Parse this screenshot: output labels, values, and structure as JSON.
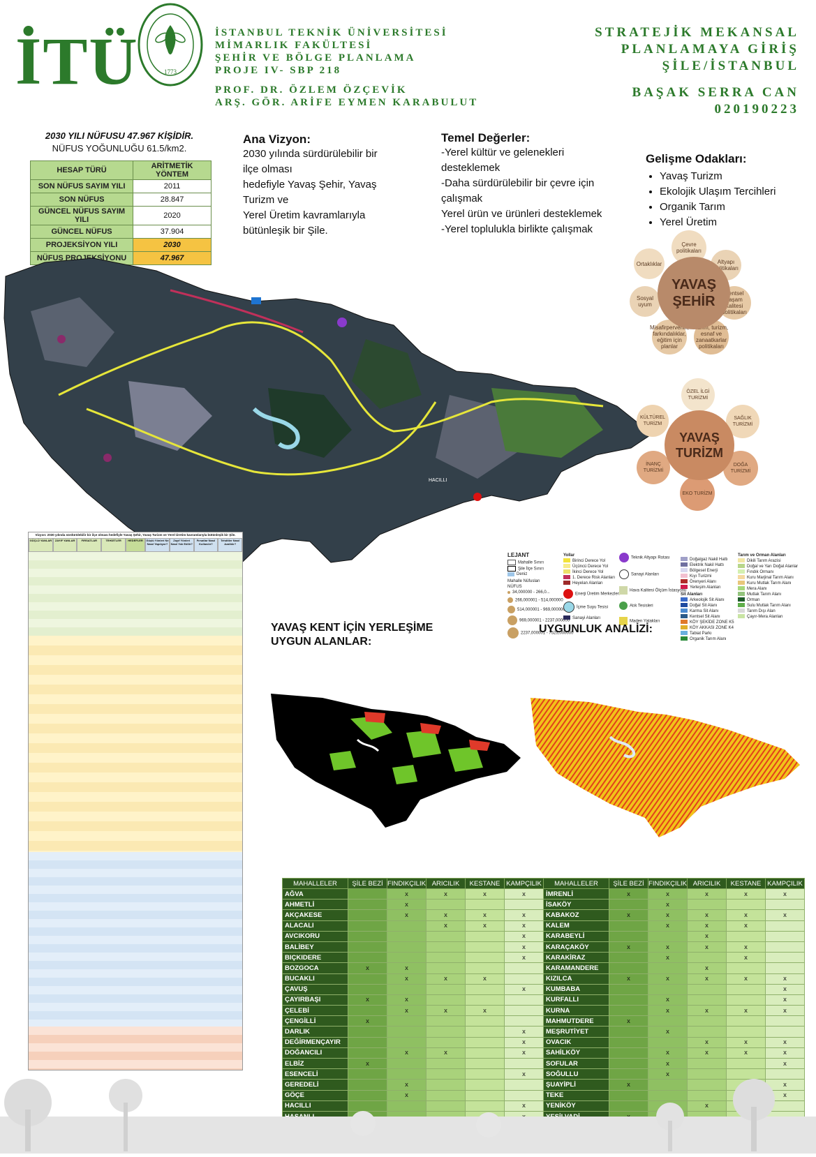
{
  "header": {
    "logo": "İTÜ",
    "seal_text": "İSTANBUL TEKNİK ÜNİVERSİTESİ 1773",
    "institution_lines": [
      "İSTANBUL TEKNİK ÜNİVERSİTESİ",
      "MİMARLIK FAKÜLTESİ",
      "ŞEHİR VE BÖLGE PLANLAMA",
      "PROJE IV- SBP 218"
    ],
    "advisor_lines": [
      "PROF. DR. ÖZLEM ÖZÇEVİK",
      "ARŞ. GÖR. ARİFE EYMEN KARABULUT"
    ],
    "course_lines": [
      "STRATEJİK MEKANSAL",
      "PLANLAMAYA GİRİŞ",
      "ŞİLE/İSTANBUL"
    ],
    "student_name": "BAŞAK SERRA CAN",
    "student_id": "020190223"
  },
  "population": {
    "caption_line1": "2030 YILI NÜFUSU 47.967 KİŞİDİR.",
    "caption_line2": "NÜFUS YOĞUNLUĞU 61.5/km2.",
    "table": [
      {
        "label": "HESAP TÜRÜ",
        "value": "ARİTMETİK YÖNTEM"
      },
      {
        "label": "SON NÜFUS SAYIM YILI",
        "value": "2011"
      },
      {
        "label": "SON NÜFUS",
        "value": "28.847"
      },
      {
        "label": "GÜNCEL NÜFUS SAYIM YILI",
        "value": "2020"
      },
      {
        "label": "GÜNCEL NÜFUS",
        "value": "37.904"
      },
      {
        "label": "PROJEKSİYON YILI",
        "value": "2030"
      },
      {
        "label": "NÜFUS PROJEKSİYONU",
        "value": "47.967"
      }
    ]
  },
  "vision": {
    "title": "Ana Vizyon:",
    "lines": [
      "2030 yılında sürdürülebilir bir",
      "ilçe olması",
      "hedefiyle Yavaş Şehir, Yavaş",
      "Turizm ve",
      "Yerel Üretim kavramlarıyla",
      "bütünleşik bir Şile."
    ]
  },
  "values": {
    "title": "Temel Değerler:",
    "lines": [
      "-Yerel kültür ve gelenekleri",
      "desteklemek",
      "-Daha sürdürülebilir bir çevre için",
      "çalışmak",
      "Yerel ürün ve ürünleri desteklemek",
      "-Yerel toplulukla birlikte çalışmak"
    ]
  },
  "focus": {
    "title": "Gelişme Odakları:",
    "items": [
      "Yavaş Turizm",
      "Ekolojik Ulaşım Tercihleri",
      "Organik Tarım",
      "Yerel Üretim"
    ]
  },
  "yavas_sehir": {
    "core": "YAVAŞ ŞEHİR",
    "petals": [
      "Çevre politikaları",
      "Altyapı politikaları",
      "Kentsel yaşam kalitesi politikaları",
      "Tarım, turizm, esnaf ve zanaatkarlar politikaları",
      "Misafirperverlik, farkındalıklar, eğitim için planlar",
      "Sosyal uyum",
      "Ortaklıklar"
    ]
  },
  "yavas_turizm": {
    "core": "YAVAŞ TURİZM",
    "petals": [
      "ÖZEL İLGİ TURİZMİ",
      "SAĞLIK TURİZMİ",
      "DOĞA TURİZMİ",
      "EKO TURİZM",
      "İNANÇ TURİZMİ",
      "KÜLTÜREL TURİZM"
    ]
  },
  "legend": {
    "title": "LEJANT",
    "col1": [
      "Mahalle Sınırı",
      "Şile İlçe Sınırı",
      "Deniz",
      "Mahalle Nüfusları",
      "NÜFUS"
    ],
    "pop_classes": [
      "34,000000 - 266,0...",
      "266,000001 - 514,000000",
      "514,000001 - 969,000000",
      "969,000001 - 2237,000000",
      "2237,000001 - 7525,000000"
    ],
    "col2_title": "Yollar",
    "col2": [
      "Birinci Derece Yol",
      "Üçüncü Derece Yol",
      "İkinci Derece Yol",
      "1. Derece Risk Alanları",
      "Heyelan Alanları",
      "Enerji Üretim Merkezleri",
      "İçme Suyu Tesisi",
      "Sanayi Alanları"
    ],
    "col3": [
      "Teknik Altyapı Rotası",
      "Sanayi Alanları",
      "Hava Kalitesi Ölçüm İstasyonu",
      "Atık Tesisleri",
      "Maden Yatakları"
    ],
    "col4_title": "Sit Alanları",
    "col4": [
      "Doğalgaz Nakil Hattı",
      "Elektrik Nakil Hattı",
      "Bölgesel Enerji",
      "Kıyı Turizmi",
      "Örenyeri Alanı",
      "Yerleşim Alanları",
      "Arkeolojik Sit Alanı",
      "Doğal Sit Alanı",
      "Karma Sit Alanı",
      "Kentsel Sit Alanı",
      "KÖY ŞEKİDE ZONE K5",
      "KÖY AKKASI ZONE K4",
      "Tabiat Parkı",
      "Organik Tarım Alanı"
    ],
    "col5_title": "Tarım ve Orman Alanları",
    "col5": [
      "Dikili Tarım Arazisi",
      "Doğal ve Yarı Doğal Alanlar",
      "Fındık Ormanı",
      "Kuru Marjinal Tarım Alanı",
      "Kuru Mutlak Tarım Alanı",
      "Mera Alanı",
      "Mutlak Tarım Alanı",
      "Orman",
      "Sulu Mutlak Tarım Alanı",
      "Tarım Dışı Alan",
      "Çayır-Mera Alanları"
    ],
    "colors": {
      "c5": [
        "#f2e7a4",
        "#b8d68a",
        "#d4f0b0",
        "#f5d9a0",
        "#e8c77a",
        "#a6d77b",
        "#93c47d",
        "#1f5c2a",
        "#5fae4a",
        "#d9d9d9",
        "#c9e4a4"
      ]
    }
  },
  "suitability": {
    "left_title_line1": "YAVAŞ KENT İÇİN YERLEŞİME",
    "left_title_line2": "UYGUN ALANLAR:",
    "right_title": "UYGUNLUK ANALİZİ:"
  },
  "swot": {
    "title": "Vizyon: 2030 yılında sürdürülebilir bir ilçe olması hedefiyle Yavaş Şehir, Yavaş Turizm ve Yerel Üretim kavramlarıyla bütünleşik bir Şile.",
    "headers": [
      "GÜÇLÜ YANLAR",
      "ZAYIF YANLAR",
      "FIRSATLAR",
      "TEHDİTLER",
      "HEDEFLER",
      "Güçlü Yönleri Ne Nasıl Yapılıyor?",
      "Zayıf Yönleri Nasıl Yok Edilir?",
      "Fırsatlar Nasıl Kullanılır?",
      "Tehditler Nasıl Azaltılır?"
    ]
  },
  "mahalle_table": {
    "headers": [
      "MAHALLELER",
      "ŞİLE BEZİ",
      "FINDIKÇILIK",
      "ARICILIK",
      "KESTANE",
      "KAMPÇILIK"
    ],
    "left": [
      {
        "name": "AĞVA",
        "marks": [
          "",
          "x",
          "x",
          "x",
          "x"
        ]
      },
      {
        "name": "AHMETLİ",
        "marks": [
          "",
          "x",
          "",
          "",
          ""
        ]
      },
      {
        "name": "AKÇAKESE",
        "marks": [
          "",
          "x",
          "x",
          "x",
          "x"
        ]
      },
      {
        "name": "ALACALI",
        "marks": [
          "",
          "",
          "x",
          "x",
          "x"
        ]
      },
      {
        "name": "AVCIKORU",
        "marks": [
          "",
          "",
          "",
          "",
          "x"
        ]
      },
      {
        "name": "BALİBEY",
        "marks": [
          "",
          "",
          "",
          "",
          "x"
        ]
      },
      {
        "name": "BIÇKIDERE",
        "marks": [
          "",
          "",
          "",
          "",
          "x"
        ]
      },
      {
        "name": "BOZGOCA",
        "marks": [
          "x",
          "x",
          "",
          "",
          ""
        ]
      },
      {
        "name": "BUCAKLI",
        "marks": [
          "",
          "x",
          "x",
          "x",
          ""
        ]
      },
      {
        "name": "ÇAVUŞ",
        "marks": [
          "",
          "",
          "",
          "",
          "x"
        ]
      },
      {
        "name": "ÇAYIRBAŞI",
        "marks": [
          "x",
          "x",
          "",
          "",
          ""
        ]
      },
      {
        "name": "ÇELEBİ",
        "marks": [
          "",
          "x",
          "x",
          "x",
          ""
        ]
      },
      {
        "name": "ÇENGİLLİ",
        "marks": [
          "x",
          "",
          "",
          "",
          ""
        ]
      },
      {
        "name": "DARLIK",
        "marks": [
          "",
          "",
          "",
          "",
          "x"
        ]
      },
      {
        "name": "DEĞİRMENÇAYIR",
        "marks": [
          "",
          "",
          "",
          "",
          "x"
        ]
      },
      {
        "name": "DOĞANCILI",
        "marks": [
          "",
          "x",
          "x",
          "",
          "x"
        ]
      },
      {
        "name": "ELBİZ",
        "marks": [
          "x",
          "",
          "",
          "",
          ""
        ]
      },
      {
        "name": "ESENCELİ",
        "marks": [
          "",
          "",
          "",
          "",
          "x"
        ]
      },
      {
        "name": "GEREDELİ",
        "marks": [
          "",
          "x",
          "",
          "",
          ""
        ]
      },
      {
        "name": "GÖÇE",
        "marks": [
          "",
          "x",
          "",
          "",
          ""
        ]
      },
      {
        "name": "HACILLI",
        "marks": [
          "",
          "",
          "",
          "",
          "x"
        ]
      },
      {
        "name": "HASANLI",
        "marks": [
          "",
          "",
          "",
          "",
          "x"
        ]
      }
    ],
    "right": [
      {
        "name": "İMRENLİ",
        "marks": [
          "x",
          "x",
          "x",
          "x",
          "x"
        ]
      },
      {
        "name": "İSAKÖY",
        "marks": [
          "",
          "x",
          "",
          "",
          ""
        ]
      },
      {
        "name": "KABAKOZ",
        "marks": [
          "x",
          "x",
          "x",
          "x",
          "x"
        ]
      },
      {
        "name": "KALEM",
        "marks": [
          "",
          "x",
          "x",
          "x",
          ""
        ]
      },
      {
        "name": "KARABEYLİ",
        "marks": [
          "",
          "",
          "x",
          "",
          ""
        ]
      },
      {
        "name": "KARAÇAKÖY",
        "marks": [
          "x",
          "x",
          "x",
          "x",
          ""
        ]
      },
      {
        "name": "KARAKİRAZ",
        "marks": [
          "",
          "x",
          "",
          "x",
          ""
        ]
      },
      {
        "name": "KARAMANDERE",
        "marks": [
          "",
          "",
          "x",
          "",
          ""
        ]
      },
      {
        "name": "KIZILCA",
        "marks": [
          "x",
          "x",
          "x",
          "x",
          "x"
        ]
      },
      {
        "name": "KUMBABA",
        "marks": [
          "",
          "",
          "",
          "",
          "x"
        ]
      },
      {
        "name": "KURFALLI",
        "marks": [
          "",
          "x",
          "",
          "",
          "x"
        ]
      },
      {
        "name": "KURNA",
        "marks": [
          "",
          "x",
          "x",
          "x",
          "x"
        ]
      },
      {
        "name": "MAHMUTDERE",
        "marks": [
          "x",
          "",
          "",
          "",
          ""
        ]
      },
      {
        "name": "MEŞRUTİYET",
        "marks": [
          "",
          "x",
          "",
          "",
          ""
        ]
      },
      {
        "name": "OVACIK",
        "marks": [
          "",
          "",
          "x",
          "x",
          "x"
        ]
      },
      {
        "name": "SAHİLKÖY",
        "marks": [
          "",
          "x",
          "x",
          "x",
          "x"
        ]
      },
      {
        "name": "SOFULAR",
        "marks": [
          "",
          "x",
          "",
          "",
          "x"
        ]
      },
      {
        "name": "SOĞULLU",
        "marks": [
          "",
          "x",
          "",
          "",
          ""
        ]
      },
      {
        "name": "ŞUAYİPLİ",
        "marks": [
          "x",
          "",
          "",
          "",
          "x"
        ]
      },
      {
        "name": "TEKE",
        "marks": [
          "",
          "",
          "",
          "",
          "x"
        ]
      },
      {
        "name": "YENİKÖY",
        "marks": [
          "",
          "",
          "x",
          "x",
          ""
        ]
      },
      {
        "name": "YEŞİLVADİ",
        "marks": [
          "x",
          "",
          "",
          "",
          ""
        ]
      }
    ]
  },
  "map_labels": {
    "hacilli": "HACILLI"
  }
}
